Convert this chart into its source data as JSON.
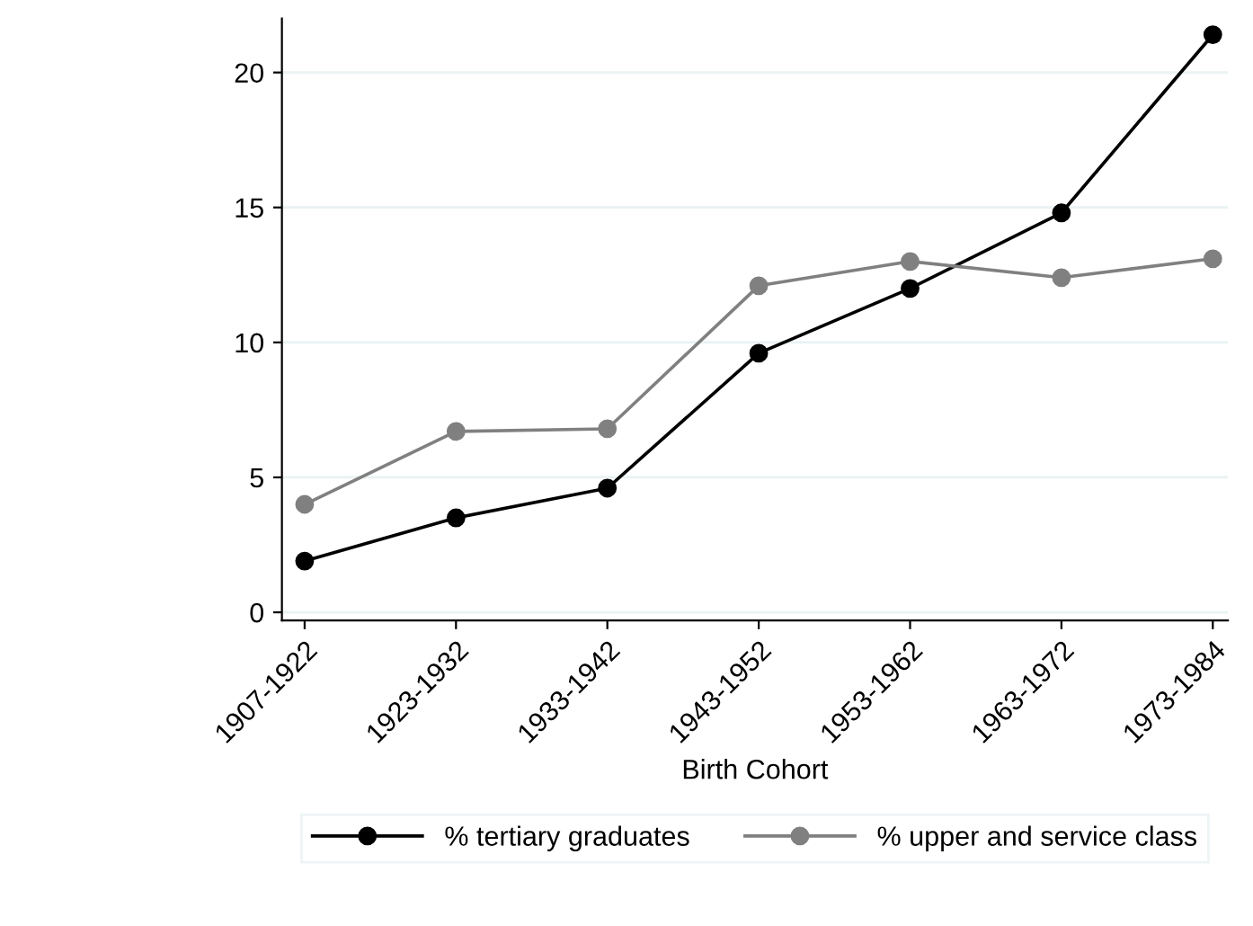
{
  "chart_data": {
    "type": "line",
    "xlabel": "Birth Cohort",
    "categories": [
      "1907-1922",
      "1923-1932",
      "1933-1942",
      "1943-1952",
      "1953-1962",
      "1963-1972",
      "1973-1984"
    ],
    "series": [
      {
        "name": "% tertiary graduates",
        "color": "#000000",
        "values": [
          1.9,
          3.5,
          4.6,
          9.6,
          12.0,
          14.8,
          21.4
        ]
      },
      {
        "name": "% upper and service class",
        "color": "#808080",
        "values": [
          4.0,
          6.7,
          6.8,
          12.1,
          13.0,
          12.4,
          13.1
        ]
      }
    ],
    "ylim": [
      -0.3,
      22
    ],
    "yticks": [
      0,
      5,
      10,
      15,
      20
    ],
    "grid": "y",
    "legend": "bottom",
    "marker": "circle",
    "line_style": "solid"
  }
}
